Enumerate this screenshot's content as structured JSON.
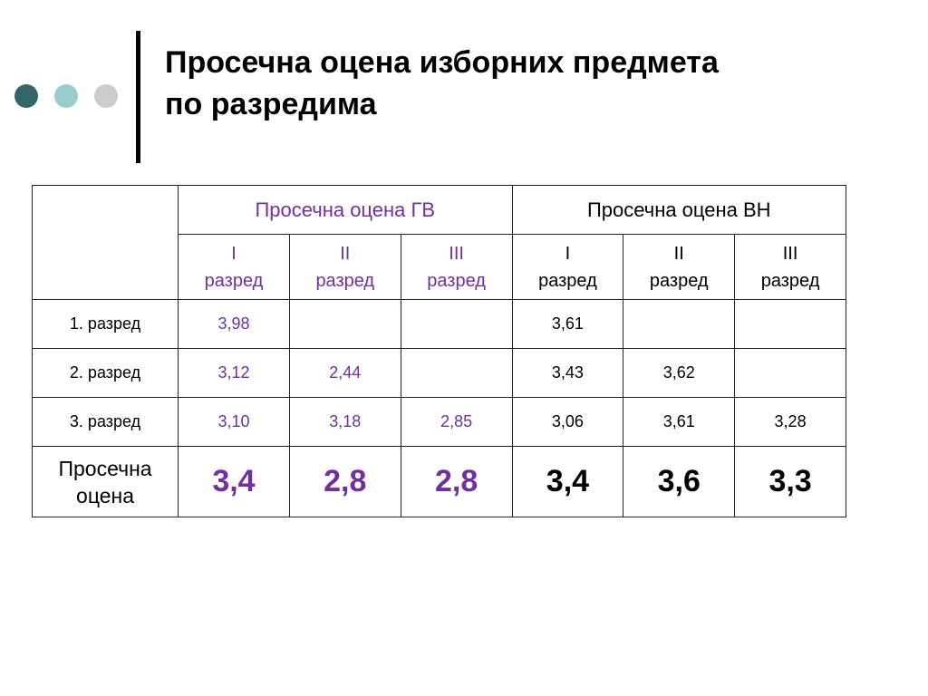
{
  "title": {
    "line1": "Просечна оцена изборних предмета",
    "line2": "по разредима"
  },
  "colors": {
    "accent_purple": "#7030a0",
    "dot1": "#336666",
    "dot2": "#99cccc",
    "dot3": "#cccccc"
  },
  "table": {
    "group_headers": [
      "Просечна оцена ГВ",
      "Просечна оцена ВН"
    ],
    "sub_headers": [
      {
        "roman": "I",
        "label": "разред"
      },
      {
        "roman": "II",
        "label": "разред"
      },
      {
        "roman": "III",
        "label": "разред"
      },
      {
        "roman": "I",
        "label": "разред"
      },
      {
        "roman": "II",
        "label": "разред"
      },
      {
        "roman": "III",
        "label": "разред"
      }
    ],
    "rows": [
      {
        "label": "1.  разред",
        "cells": [
          "3,98",
          "",
          "",
          "3,61",
          "",
          ""
        ]
      },
      {
        "label": "2. разред",
        "cells": [
          "3,12",
          "2,44",
          "",
          "3,43",
          "3,62",
          ""
        ]
      },
      {
        "label": "3. разред",
        "cells": [
          "3,10",
          "3,18",
          "2,85",
          "3,06",
          "3,61",
          "3,28"
        ]
      }
    ],
    "average": {
      "label_line1": "Просечна",
      "label_line2": "оцена",
      "cells": [
        "3,4",
        "2,8",
        "2,8",
        "3,4",
        "3,6",
        "3,3"
      ]
    }
  }
}
